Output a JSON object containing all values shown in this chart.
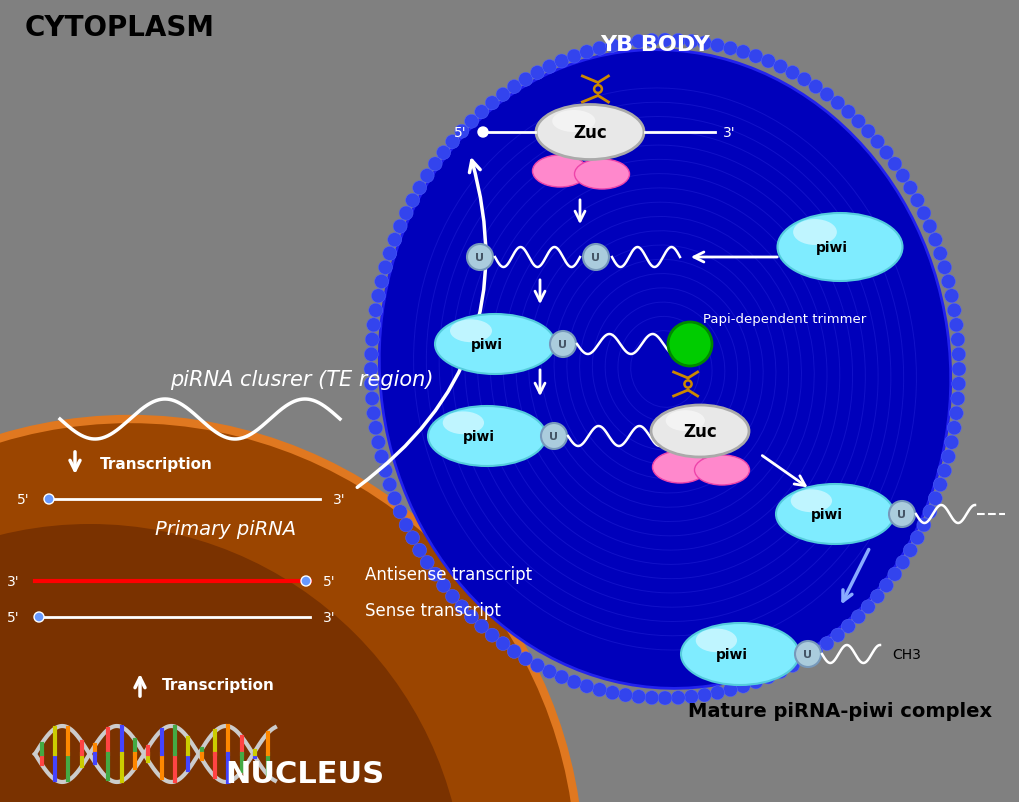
{
  "bg_color": "#808080",
  "cytoplasm_label": "CYTOPLASM",
  "nucleus_label": "NUCLEUS",
  "yb_body_label": "YB BODY",
  "zuc_label": "Zuc",
  "piwi_label": "piwi",
  "u_label": "U",
  "papi_label": "Papi-dependent trimmer",
  "pirna_cluster_label": "piRNA clusrer (TE region)",
  "primary_pirna_label": "Primary piRNA",
  "antisense_label": "Antisense transcript",
  "sense_label": "Sense transcript",
  "transcription_label": "Transcription",
  "ch3_label": "CH3",
  "mature_label": "Mature piRNA-piwi complex",
  "nucleus_color": "#9B4500",
  "nucleus_edge": "#CC6010",
  "yb_color": "#0000BB",
  "yb_ring_color": "#1111CC",
  "bead_color": "#3333EE",
  "cyan_piwi": "#7FECFF",
  "cyan_piwi_edge": "#55CCDD",
  "pink_color": "#FF88CC",
  "pink_edge": "#EE44AA",
  "gray_zuc": "#E8E8E8",
  "gray_zuc_edge": "#AAAAAA",
  "green_papi": "#00CC00",
  "green_papi_edge": "#008800",
  "white": "#FFFFFF",
  "red_line": "#FF0000",
  "blue_dot": "#6699FF",
  "orange_scissor": "#DD8800",
  "black": "#000000",
  "light_blue_arrow": "#88AAFF",
  "u_circle_face": "#AACCDD",
  "u_circle_edge": "#7799BB",
  "u_text_color": "#445566"
}
